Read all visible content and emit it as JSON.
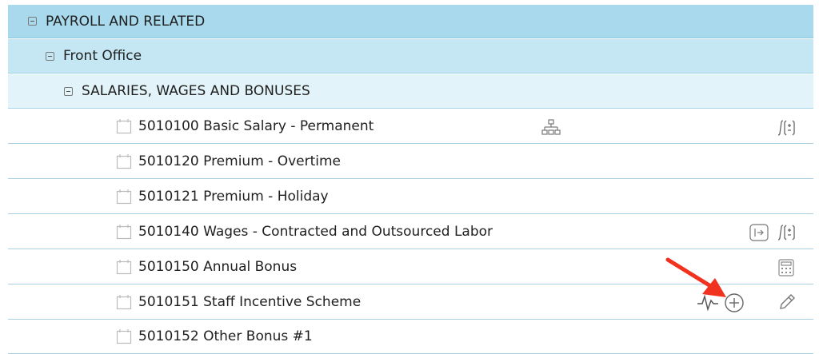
{
  "tree": {
    "group": {
      "label": "PAYROLL AND RELATED",
      "toggle_icon": "collapse-icon"
    },
    "subgroup": {
      "label": "Front Office",
      "toggle_icon": "collapse-icon"
    },
    "category": {
      "label": "SALARIES, WAGES AND BONUSES",
      "toggle_icon": "collapse-icon"
    },
    "accounts": [
      {
        "label": "5010100 Basic Salary - Permanent",
        "icons": [
          "hierarchy-icon",
          "formula-icon"
        ]
      },
      {
        "label": "5010120 Premium - Overtime",
        "icons": []
      },
      {
        "label": "5010121 Premium - Holiday",
        "icons": []
      },
      {
        "label": "5010140 Wages - Contracted and Outsourced Labor",
        "icons": [
          "link-icon",
          "formula-icon"
        ]
      },
      {
        "label": "5010150 Annual Bonus",
        "icons": [
          "calculator-icon"
        ]
      },
      {
        "label": "5010151 Staff Incentive Scheme",
        "icons": [
          "trend-icon",
          "add-icon",
          "edit-icon"
        ]
      },
      {
        "label": "5010152 Other Bonus #1",
        "icons": []
      }
    ]
  },
  "colors": {
    "group_bg": "#a9d9ec",
    "subgroup_bg": "#c4e7f3",
    "category_bg": "#e2f3f9",
    "accent": "#a9741f",
    "annotation_arrow": "#f0321e"
  }
}
